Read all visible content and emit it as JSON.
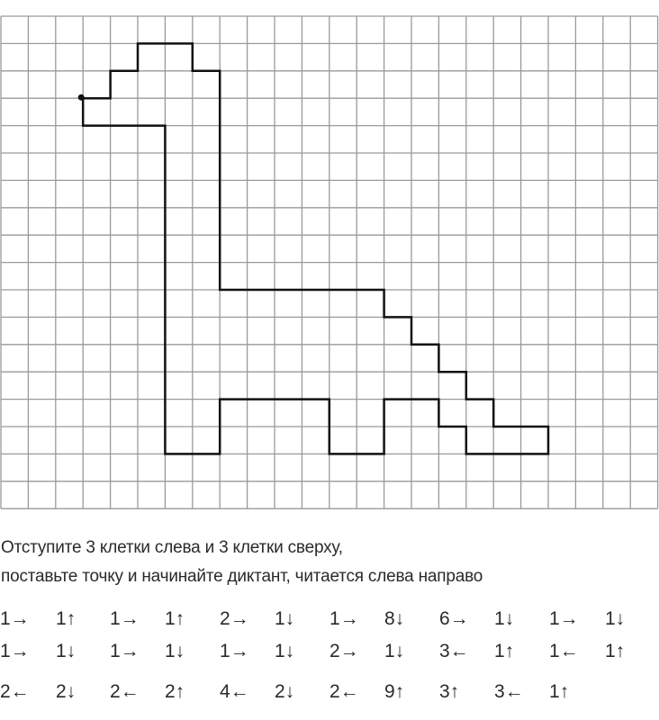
{
  "worksheet": {
    "grid": {
      "columns": 24,
      "rows": 18,
      "start_cell": {
        "col": 3,
        "row": 3
      }
    },
    "instructions": [
      "Отступите  3 клетки слева и 3 клетки сверху,",
      "поставьте точку и начинайте диктант, читается слева направо"
    ],
    "commands": [
      [
        "1→",
        "1↑",
        "1→",
        "1↑",
        "2→",
        "1↓",
        "1→",
        "8↓",
        "6→",
        "1↓",
        "1→",
        "1↓"
      ],
      [
        "1→",
        "1↓",
        "1→",
        "1↓",
        "1→",
        "1↓",
        "2→",
        "1↓",
        "3←",
        "1↑",
        "1←",
        "1↑"
      ],
      [
        "2←",
        "2↓",
        "2←",
        "2↑",
        "4←",
        "2↓",
        "2←",
        "9↑",
        "3↑",
        "3←",
        "1↑"
      ]
    ],
    "colors": {
      "grid_line": "#9a9a9a",
      "path": "#111111"
    }
  }
}
